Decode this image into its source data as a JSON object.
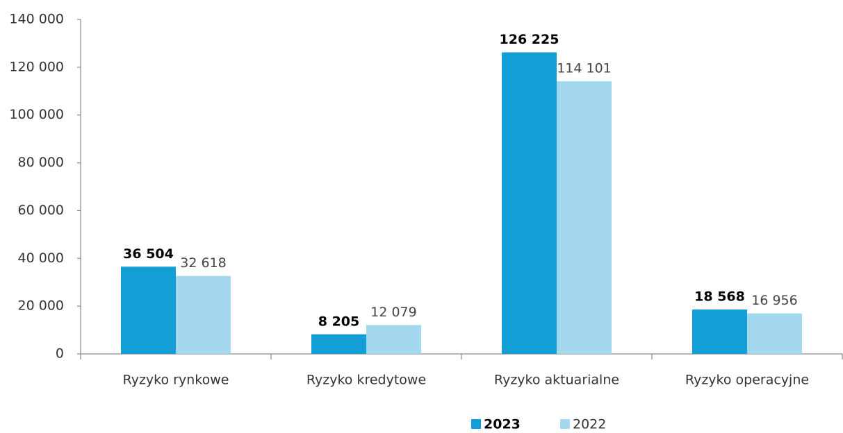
{
  "chart_data": {
    "type": "bar",
    "categories": [
      "Ryzyko rynkowe",
      "Ryzyko kredytowe",
      "Ryzyko aktuarialne",
      "Ryzyko operacyjne"
    ],
    "series": [
      {
        "name": "2023",
        "color": "#139fd6",
        "values": [
          36504,
          8205,
          126225,
          18568
        ],
        "value_labels": [
          "36 504",
          "8 205",
          "126 225",
          "18 568"
        ]
      },
      {
        "name": "2022",
        "color": "#a3d8ee",
        "values": [
          32618,
          12079,
          114101,
          16956
        ],
        "value_labels": [
          "32 618",
          "12 079",
          "114 101",
          "16 956"
        ]
      }
    ],
    "ylim": [
      0,
      140000
    ],
    "yticks": [
      0,
      {
        "value": 20000,
        "label": "20 000"
      },
      {
        "value": 40000,
        "label": "40 000"
      },
      {
        "value": 60000,
        "label": "60 000"
      },
      {
        "value": 80000,
        "label": "80 000"
      },
      {
        "value": 100000,
        "label": "100 000"
      },
      {
        "value": 120000,
        "label": "120 000"
      },
      {
        "value": 140000,
        "label": "140 000"
      }
    ],
    "grid": false,
    "legend": "bottom"
  }
}
